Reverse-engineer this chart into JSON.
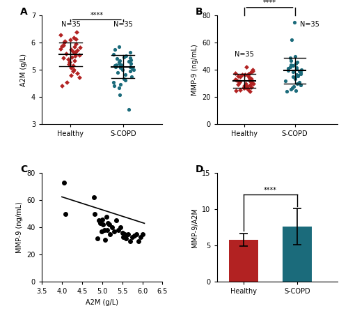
{
  "panel_A": {
    "label": "A",
    "healthy_data": [
      6.4,
      6.3,
      6.2,
      6.15,
      6.1,
      6.05,
      6.0,
      5.95,
      5.9,
      5.88,
      5.85,
      5.82,
      5.78,
      5.75,
      5.72,
      5.68,
      5.65,
      5.6,
      5.55,
      5.52,
      5.48,
      5.45,
      5.4,
      5.35,
      5.28,
      5.22,
      5.15,
      5.08,
      5.0,
      4.95,
      4.88,
      4.8,
      4.72,
      4.55,
      4.42
    ],
    "scopd_data": [
      5.85,
      5.75,
      5.65,
      5.58,
      5.52,
      5.48,
      5.45,
      5.42,
      5.38,
      5.35,
      5.32,
      5.28,
      5.25,
      5.22,
      5.2,
      5.18,
      5.15,
      5.12,
      5.1,
      5.08,
      5.05,
      5.02,
      5.0,
      4.95,
      4.9,
      4.82,
      4.75,
      4.68,
      4.62,
      4.55,
      4.48,
      4.42,
      4.35,
      4.08,
      3.55
    ],
    "healthy_mean": 5.57,
    "healthy_sd": 0.44,
    "scopd_mean": 5.12,
    "scopd_sd": 0.42,
    "ylabel": "A2M (g/L)",
    "ylim": [
      3.0,
      7.0
    ],
    "yticks": [
      3,
      4,
      5,
      6,
      7
    ],
    "healthy_color": "#B22222",
    "scopd_color": "#1B6B7B",
    "significance": "****"
  },
  "panel_B": {
    "label": "B",
    "healthy_data": [
      42,
      40,
      39,
      38,
      37.5,
      37,
      36.8,
      36.5,
      36,
      35.5,
      35,
      34.5,
      34,
      33.5,
      33,
      33,
      32.5,
      32,
      31.5,
      31,
      30.5,
      30,
      30,
      29.5,
      29,
      28.5,
      28,
      27.5,
      27,
      27,
      26.5,
      26,
      25.5,
      25,
      24.5
    ],
    "scopd_data": [
      75,
      62,
      50,
      49,
      47,
      46,
      45,
      44,
      43,
      42,
      41.5,
      41,
      40.5,
      40,
      39.5,
      39,
      38.5,
      38,
      37.5,
      37,
      36.5,
      36,
      35.5,
      35,
      34.5,
      33.5,
      32,
      31,
      30,
      29,
      28,
      27,
      26,
      25,
      24
    ],
    "healthy_mean": 32.0,
    "healthy_sd": 5.0,
    "scopd_mean": 39.5,
    "scopd_sd": 9.5,
    "ylabel": "MMP-9 (ng/mL)",
    "ylim": [
      0,
      80
    ],
    "yticks": [
      0,
      20,
      40,
      60,
      80
    ],
    "healthy_color": "#B22222",
    "scopd_color": "#1B6B7B",
    "significance": "****"
  },
  "panel_C": {
    "label": "C",
    "x_data": [
      4.05,
      4.08,
      4.8,
      4.82,
      4.88,
      4.92,
      4.95,
      4.98,
      5.0,
      5.02,
      5.05,
      5.08,
      5.1,
      5.12,
      5.15,
      5.18,
      5.2,
      5.25,
      5.3,
      5.35,
      5.4,
      5.45,
      5.5,
      5.52,
      5.55,
      5.58,
      5.6,
      5.65,
      5.7,
      5.75,
      5.8,
      5.85,
      5.9,
      5.95,
      6.0
    ],
    "y_data": [
      73,
      50,
      62,
      50,
      32,
      45,
      43,
      37,
      46,
      42,
      38,
      31,
      48,
      38,
      43,
      42,
      35,
      40,
      37,
      45,
      38,
      40,
      36,
      33,
      35,
      34,
      32,
      35,
      30,
      33,
      34,
      35,
      30,
      33,
      35
    ],
    "slope": -9.5,
    "intercept": 100.5,
    "xlabel": "A2M (g/L)",
    "ylabel": "MMP-9 (ng/mL)",
    "xlim": [
      3.5,
      6.5
    ],
    "ylim": [
      0,
      80
    ],
    "yticks": [
      0,
      20,
      40,
      60,
      80
    ],
    "xticks": [
      3.5,
      4.0,
      4.5,
      5.0,
      5.5,
      6.0,
      6.5
    ]
  },
  "panel_D": {
    "label": "D",
    "categories": [
      "Healthy",
      "S-COPD"
    ],
    "means": [
      5.8,
      7.6
    ],
    "sds": [
      0.9,
      2.5
    ],
    "colors": [
      "#B22222",
      "#1B6B7B"
    ],
    "ylabel": "MMP-9/A2M",
    "ylim": [
      0,
      15
    ],
    "yticks": [
      0,
      5,
      10,
      15
    ],
    "significance": "****"
  }
}
